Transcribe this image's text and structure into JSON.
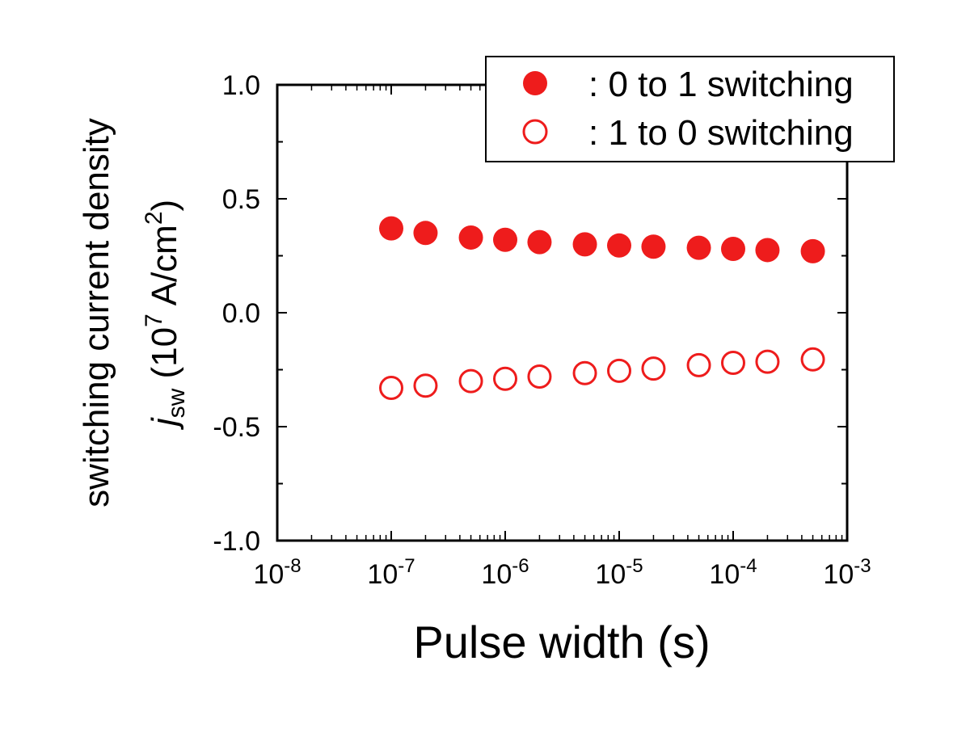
{
  "chart_data": {
    "type": "scatter",
    "x_scale": "log",
    "xlim": [
      1e-08,
      0.001
    ],
    "ylim": [
      -1.0,
      1.0
    ],
    "xlabel": "Pulse width (s)",
    "ylabel": {
      "line1": "switching current density",
      "symbol": "j",
      "subscript": "sw",
      "unit_open": " (10",
      "unit_exp": "7",
      "unit_mid": " A/cm",
      "unit_exp2": "2",
      "unit_close": ")"
    },
    "x_ticks": [
      {
        "base": "10",
        "exp": "-8",
        "value": 1e-08
      },
      {
        "base": "10",
        "exp": "-7",
        "value": 1e-07
      },
      {
        "base": "10",
        "exp": "-6",
        "value": 1e-06
      },
      {
        "base": "10",
        "exp": "-5",
        "value": 1e-05
      },
      {
        "base": "10",
        "exp": "-4",
        "value": 0.0001
      },
      {
        "base": "10",
        "exp": "-3",
        "value": 0.001
      }
    ],
    "y_ticks": [
      {
        "label": "1.0",
        "value": 1.0
      },
      {
        "label": "0.5",
        "value": 0.5
      },
      {
        "label": "0.0",
        "value": 0.0
      },
      {
        "label": "-0.5",
        "value": -0.5
      },
      {
        "label": "-1.0",
        "value": -1.0
      }
    ],
    "grid": false,
    "legend_position": "top-right",
    "color": "#ee1c1c",
    "series": [
      {
        "name": ": 0 to 1 switching",
        "marker": "filled-circle",
        "x": [
          1e-07,
          2e-07,
          5e-07,
          1e-06,
          2e-06,
          5e-06,
          1e-05,
          2e-05,
          5e-05,
          0.0001,
          0.0002,
          0.0005
        ],
        "y": [
          0.37,
          0.35,
          0.33,
          0.32,
          0.31,
          0.3,
          0.295,
          0.29,
          0.285,
          0.28,
          0.275,
          0.27
        ]
      },
      {
        "name": ": 1 to 0 switching",
        "marker": "open-circle",
        "x": [
          1e-07,
          2e-07,
          5e-07,
          1e-06,
          2e-06,
          5e-06,
          1e-05,
          2e-05,
          5e-05,
          0.0001,
          0.0002,
          0.0005
        ],
        "y": [
          -0.33,
          -0.32,
          -0.3,
          -0.29,
          -0.28,
          -0.265,
          -0.255,
          -0.245,
          -0.23,
          -0.22,
          -0.215,
          -0.205
        ]
      }
    ]
  }
}
